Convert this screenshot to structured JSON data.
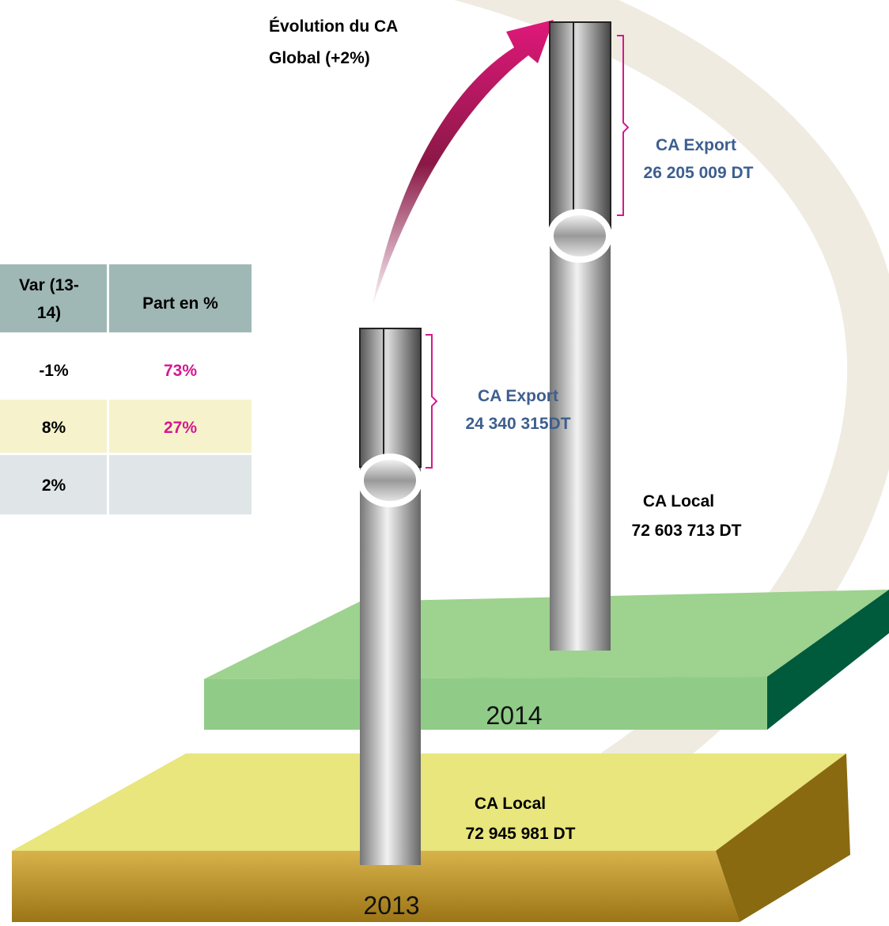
{
  "title": [
    "Évolution du CA",
    "Global  (+2%)"
  ],
  "table": {
    "header": {
      "var": [
        "Var (13-",
        "14)"
      ],
      "part": "Part en %"
    },
    "rows": [
      [
        "-1%",
        "73%"
      ],
      [
        "8%",
        "27%"
      ],
      [
        "2%"
      ]
    ]
  },
  "columns": [
    {
      "year": "2013",
      "export": {
        "label": "CA Export",
        "amount": "24 340 315DT"
      },
      "local": {
        "label": "CA Local",
        "amount": "72 945 981 DT"
      }
    },
    {
      "year": "2014",
      "export": {
        "label": "CA Export",
        "amount": "26 205 009 DT"
      },
      "local": {
        "label": "CA Local",
        "amount": "72 603 713 DT"
      }
    }
  ]
}
